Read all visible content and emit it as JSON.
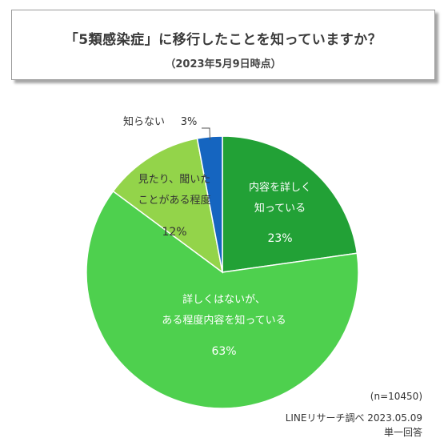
{
  "title": "「5類感染症」に移行したことを知っていますか？",
  "subtitle": "（2023年5月9日時点）",
  "chart_data": {
    "type": "pie",
    "start": "top",
    "direction": "clockwise",
    "slices": [
      {
        "label": "内容を詳しく\n知っている",
        "value": 23,
        "value_label": "23%",
        "color": "#22a136",
        "text_color": "#ffffff"
      },
      {
        "label": "詳しくはないが、\nある程度内容を知っている",
        "value": 63,
        "value_label": "63%",
        "color": "#4ed04e",
        "text_color": "#ffffff"
      },
      {
        "label": "見たり、聞いた\nことがある程度",
        "value": 12,
        "value_label": "12%",
        "color": "#93d44a",
        "text_color": "#333333"
      },
      {
        "label": "知らない",
        "value": 3,
        "value_label": "3%",
        "color": "#1565c0",
        "text_color": "#333333"
      }
    ]
  },
  "footer": {
    "n": "(n=10450)",
    "source": "LINEリサーチ調べ 2023.05.09",
    "answer_type": "単一回答"
  }
}
